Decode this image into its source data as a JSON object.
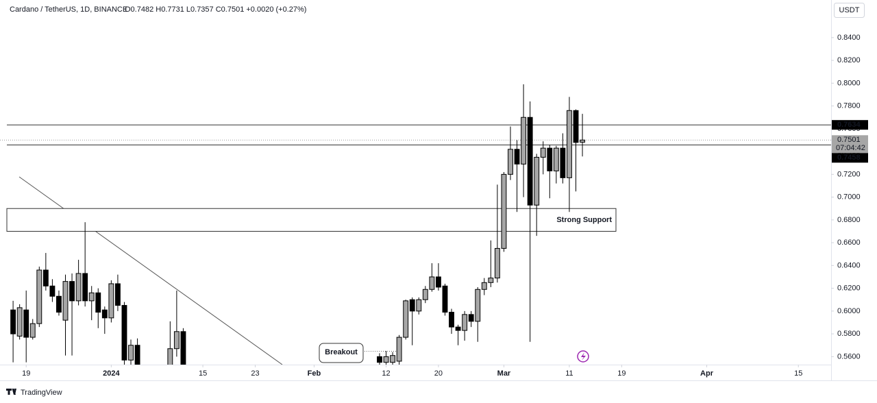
{
  "chart_data": {
    "type": "candlestick",
    "title": "Cardano / TetherUS, 1D, BINANCE",
    "ohlc_text": "O0.7482 H0.7731 L0.7357 C0.7501 +0.0020 (+0.27%)",
    "currency": "USDT",
    "x": [
      "2023-12-17",
      "2023-12-18",
      "2023-12-19",
      "2023-12-20",
      "2023-12-21",
      "2023-12-22",
      "2023-12-23",
      "2023-12-24",
      "2023-12-25",
      "2023-12-26",
      "2023-12-27",
      "2023-12-28",
      "2023-12-29",
      "2023-12-30",
      "2023-12-31",
      "2024-01-01",
      "2024-01-02",
      "2024-01-03",
      "2024-01-04",
      "2024-01-05",
      "2024-01-10",
      "2024-01-11",
      "2024-01-12",
      "2024-02-11",
      "2024-02-12",
      "2024-02-13",
      "2024-02-14",
      "2024-02-15",
      "2024-02-16",
      "2024-02-17",
      "2024-02-18",
      "2024-02-19",
      "2024-02-20",
      "2024-02-21",
      "2024-02-22",
      "2024-02-23",
      "2024-02-24",
      "2024-02-25",
      "2024-02-26",
      "2024-02-27",
      "2024-02-28",
      "2024-02-29",
      "2024-03-01",
      "2024-03-02",
      "2024-03-03",
      "2024-03-04",
      "2024-03-05",
      "2024-03-06",
      "2024-03-07",
      "2024-03-08",
      "2024-03-09",
      "2024-03-10",
      "2024-03-11",
      "2024-03-12",
      "2024-03-13"
    ],
    "open": [
      0.601,
      0.578,
      0.601,
      0.577,
      0.589,
      0.636,
      0.622,
      0.613,
      0.592,
      0.626,
      0.609,
      0.633,
      0.609,
      0.616,
      0.601,
      0.594,
      0.624,
      0.605,
      0.557,
      0.57,
      0.55,
      0.567,
      0.582,
      0.56,
      0.555,
      0.555,
      0.556,
      0.577,
      0.61,
      0.6,
      0.61,
      0.619,
      0.63,
      0.622,
      0.599,
      0.586,
      0.583,
      0.597,
      0.591,
      0.619,
      0.625,
      0.629,
      0.655,
      0.72,
      0.742,
      0.729,
      0.77,
      0.693,
      0.735,
      0.743,
      0.723,
      0.743,
      0.717,
      0.776,
      0.7482
    ],
    "high": [
      0.609,
      0.606,
      0.618,
      0.593,
      0.639,
      0.651,
      0.628,
      0.618,
      0.632,
      0.633,
      0.645,
      0.678,
      0.622,
      0.62,
      0.604,
      0.627,
      0.632,
      0.608,
      0.575,
      0.576,
      0.591,
      0.618,
      0.585,
      0.563,
      0.565,
      0.564,
      0.579,
      0.61,
      0.612,
      0.612,
      0.622,
      0.642,
      0.642,
      0.624,
      0.602,
      0.588,
      0.6,
      0.6,
      0.621,
      0.629,
      0.662,
      0.711,
      0.722,
      0.762,
      0.75,
      0.799,
      0.784,
      0.738,
      0.749,
      0.746,
      0.745,
      0.756,
      0.788,
      0.777,
      0.7731
    ],
    "low": [
      0.555,
      0.575,
      0.555,
      0.575,
      0.586,
      0.618,
      0.608,
      0.596,
      0.561,
      0.561,
      0.605,
      0.604,
      0.592,
      0.585,
      0.58,
      0.59,
      0.6,
      0.53,
      0.55,
      0.54,
      0.54,
      0.56,
      0.54,
      0.55,
      0.55,
      0.55,
      0.552,
      0.575,
      0.57,
      0.597,
      0.607,
      0.617,
      0.618,
      0.596,
      0.58,
      0.57,
      0.574,
      0.586,
      0.573,
      0.614,
      0.621,
      0.625,
      0.652,
      0.715,
      0.687,
      0.7,
      0.573,
      0.666,
      0.72,
      0.699,
      0.712,
      0.712,
      0.687,
      0.705,
      0.7357
    ],
    "close": [
      0.58,
      0.603,
      0.577,
      0.589,
      0.636,
      0.622,
      0.613,
      0.599,
      0.626,
      0.609,
      0.633,
      0.609,
      0.616,
      0.599,
      0.594,
      0.624,
      0.605,
      0.557,
      0.57,
      0.552,
      0.567,
      0.582,
      0.552,
      0.555,
      0.56,
      0.561,
      0.577,
      0.609,
      0.6,
      0.61,
      0.619,
      0.63,
      0.621,
      0.599,
      0.586,
      0.583,
      0.597,
      0.591,
      0.619,
      0.625,
      0.629,
      0.655,
      0.72,
      0.742,
      0.729,
      0.77,
      0.693,
      0.735,
      0.743,
      0.723,
      0.743,
      0.717,
      0.776,
      0.748,
      0.7501
    ],
    "up_color": "#a6a6a6",
    "down_color": "#000000",
    "xlim": [
      "2023-12-15",
      "2024-04-20"
    ],
    "xticks": [
      {
        "value": "2023-12-19",
        "label": "19"
      },
      {
        "value": "2024-01-01",
        "label": "2024"
      },
      {
        "value": "2024-01-15",
        "label": "15"
      },
      {
        "value": "2024-01-23",
        "label": "23"
      },
      {
        "value": "2024-02-01",
        "label": "Feb"
      },
      {
        "value": "2024-02-12",
        "label": "12"
      },
      {
        "value": "2024-02-20",
        "label": "20"
      },
      {
        "value": "2024-03-01",
        "label": "Mar"
      },
      {
        "value": "2024-03-11",
        "label": "11"
      },
      {
        "value": "2024-03-19",
        "label": "19"
      },
      {
        "value": "2024-04-01",
        "label": "Apr"
      },
      {
        "value": "2024-04-15",
        "label": "15"
      }
    ],
    "ylim": [
      0.553,
      0.873
    ],
    "yticks": [
      {
        "value": 0.56,
        "label": "0.5600"
      },
      {
        "value": 0.58,
        "label": "0.5800"
      },
      {
        "value": 0.6,
        "label": "0.6000"
      },
      {
        "value": 0.62,
        "label": "0.6200"
      },
      {
        "value": 0.64,
        "label": "0.6400"
      },
      {
        "value": 0.66,
        "label": "0.6600"
      },
      {
        "value": 0.68,
        "label": "0.6800"
      },
      {
        "value": 0.7,
        "label": "0.7000"
      },
      {
        "value": 0.72,
        "label": "0.7200"
      },
      {
        "value": 0.74,
        "label": "0.7400"
      },
      {
        "value": 0.76,
        "label": "0.7600"
      },
      {
        "value": 0.78,
        "label": "0.7800"
      },
      {
        "value": 0.8,
        "label": "0.8000"
      },
      {
        "value": 0.82,
        "label": "0.8200"
      },
      {
        "value": 0.84,
        "label": "0.8400"
      }
    ],
    "levels": [
      {
        "value": 0.7634,
        "label": "0.7634"
      },
      {
        "value": 0.7458,
        "label": "0.7458"
      }
    ],
    "current_price": {
      "value": 0.7501,
      "label": "0.7501"
    },
    "countdown": "07:04:42",
    "zone": {
      "low": 0.67,
      "high": 0.69,
      "label": "Strong Support"
    },
    "annotation": "Breakout",
    "grid": false
  },
  "footer": {
    "brand": "TradingView"
  }
}
